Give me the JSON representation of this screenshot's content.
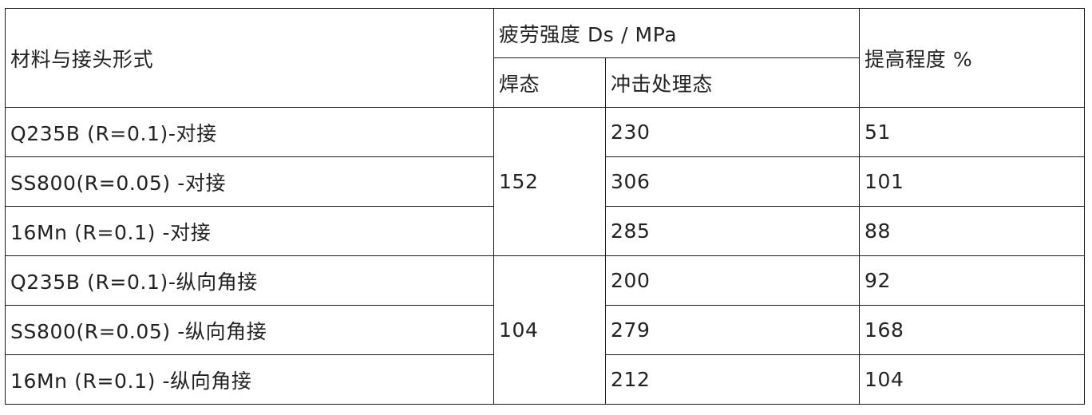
{
  "table": {
    "headers": {
      "material": "材料与接头形式",
      "fatigue_strength": "疲劳强度 Ds / MPa",
      "as_welded": "焊态",
      "impact_treated": "冲击处理态",
      "improvement": "提高程度 %"
    },
    "groups": [
      {
        "as_welded": "152",
        "rows": [
          {
            "material": "Q235B (R=0.1)-对接",
            "impact_treated": "230",
            "improvement": "51"
          },
          {
            "material": "SS800(R=0.05) -对接",
            "impact_treated": "306",
            "improvement": "101"
          },
          {
            "material": "16Mn (R=0.1) -对接",
            "impact_treated": "285",
            "improvement": "88"
          }
        ]
      },
      {
        "as_welded": "104",
        "rows": [
          {
            "material": "Q235B (R=0.1)-纵向角接",
            "impact_treated": "200",
            "improvement": "92"
          },
          {
            "material": "SS800(R=0.05) -纵向角接",
            "impact_treated": "279",
            "improvement": "168"
          },
          {
            "material": "16Mn (R=0.1) -纵向角接",
            "impact_treated": "212",
            "improvement": "104"
          }
        ]
      }
    ]
  }
}
